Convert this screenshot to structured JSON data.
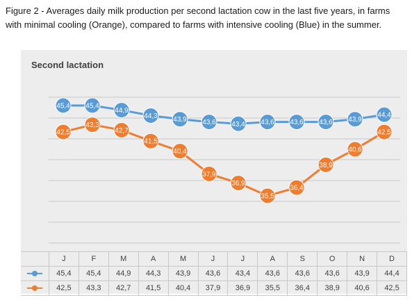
{
  "figure_caption": "Figure 2 - Averages daily milk production per second lactation cow in the last five years, in farms with minimal cooling (Orange), compared to farms with intensive cooling (Blue) in the summer.",
  "colors": {
    "blue": "#5b9bd5",
    "orange": "#ed7d31",
    "background": "#ededed"
  },
  "chart_data": {
    "type": "line",
    "title": "Second lactation",
    "xlabel": "",
    "ylabel": "",
    "ylim": [
      32,
      47
    ],
    "grid": true,
    "legend": "data-table-below",
    "categories": [
      "J",
      "F",
      "M",
      "A",
      "M",
      "J",
      "J",
      "A",
      "S",
      "O",
      "N",
      "D"
    ],
    "series": [
      {
        "color": "blue",
        "values": [
          45.4,
          45.4,
          44.9,
          44.3,
          43.9,
          43.6,
          43.4,
          43.6,
          43.6,
          43.6,
          43.9,
          44.4
        ],
        "labels": [
          "45,4",
          "45,4",
          "44,9",
          "44,3",
          "43,9",
          "43,6",
          "43,4",
          "43,6",
          "43,6",
          "43,6",
          "43,9",
          "44,4"
        ]
      },
      {
        "color": "orange",
        "values": [
          42.5,
          43.3,
          42.7,
          41.5,
          40.4,
          37.9,
          36.9,
          35.5,
          36.4,
          38.9,
          40.6,
          42.5
        ],
        "labels": [
          "42,5",
          "43,3",
          "42,7",
          "41,5",
          "40,4",
          "37,9",
          "36,9",
          "35,5",
          "36,4",
          "38,9",
          "40,6",
          "42,5"
        ]
      }
    ]
  }
}
